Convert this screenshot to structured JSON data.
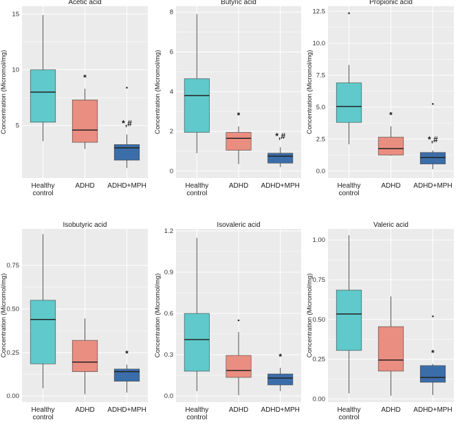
{
  "figure": {
    "ylabel": "Concentration (Micromol/mg)",
    "colors": {
      "healthy": "#5FC9CB",
      "adhd": "#E98E81",
      "mph": "#3B6EA8",
      "panel_bg": "#EBEBEB",
      "grid": "#FFFFFF"
    },
    "categories": [
      {
        "label_lines": [
          "Healthy",
          "control"
        ]
      },
      {
        "label_lines": [
          "ADHD"
        ]
      },
      {
        "label_lines": [
          "ADHD+MPH"
        ]
      }
    ]
  },
  "chart_data": [
    {
      "type": "box",
      "title": "Acetic acid",
      "ylabel": "Concentration (Micromol/mg)",
      "ylim": [
        0.3,
        15.7
      ],
      "yticks": [
        {
          "v": 5,
          "label": "5"
        },
        {
          "v": 10,
          "label": "10"
        },
        {
          "v": 15,
          "label": "15"
        }
      ],
      "categories": [
        "Healthy control",
        "ADHD",
        "ADHD+MPH"
      ],
      "boxes": [
        {
          "min": 3.6,
          "q1": 5.3,
          "median": 8.0,
          "q3": 10.0,
          "max": 14.9,
          "outliers": [],
          "sig": ""
        },
        {
          "min": 2.9,
          "q1": 3.5,
          "median": 4.6,
          "q3": 7.3,
          "max": 8.3,
          "outliers": [],
          "sig": "*"
        },
        {
          "min": 1.2,
          "q1": 1.9,
          "median": 3.0,
          "q3": 3.3,
          "max": 4.2,
          "outliers": [
            8.4
          ],
          "sig": "*,#"
        }
      ]
    },
    {
      "type": "box",
      "title": "Butyric acid",
      "ylabel": "Concentration (Micromol/mg)",
      "ylim": [
        -0.35,
        8.3
      ],
      "yticks": [
        {
          "v": 0,
          "label": "0"
        },
        {
          "v": 2,
          "label": "2"
        },
        {
          "v": 4,
          "label": "4"
        },
        {
          "v": 6,
          "label": "6"
        },
        {
          "v": 8,
          "label": "8"
        }
      ],
      "categories": [
        "Healthy control",
        "ADHD",
        "ADHD+MPH"
      ],
      "boxes": [
        {
          "min": 0.9,
          "q1": 1.95,
          "median": 3.8,
          "q3": 4.65,
          "max": 7.9,
          "outliers": [],
          "sig": ""
        },
        {
          "min": 0.35,
          "q1": 1.05,
          "median": 1.65,
          "q3": 1.95,
          "max": 2.25,
          "outliers": [],
          "sig": "*"
        },
        {
          "min": 0.2,
          "q1": 0.4,
          "median": 0.75,
          "q3": 0.9,
          "max": 1.2,
          "outliers": [],
          "sig": "*,#"
        }
      ]
    },
    {
      "type": "box",
      "title": "Propionic acid",
      "ylabel": "Concentration (Micromol/mg)",
      "ylim": [
        -0.55,
        12.9
      ],
      "yticks": [
        {
          "v": 0,
          "label": "0.0"
        },
        {
          "v": 2.5,
          "label": "2.5"
        },
        {
          "v": 5,
          "label": "5.0"
        },
        {
          "v": 7.5,
          "label": "7.5"
        },
        {
          "v": 10,
          "label": "10.0"
        },
        {
          "v": 12.5,
          "label": "12.5"
        }
      ],
      "categories": [
        "Healthy control",
        "ADHD",
        "ADHD+MPH"
      ],
      "boxes": [
        {
          "min": 2.1,
          "q1": 3.8,
          "median": 5.05,
          "q3": 6.9,
          "max": 8.3,
          "outliers": [
            12.35
          ],
          "sig": ""
        },
        {
          "min": 1.2,
          "q1": 1.25,
          "median": 1.75,
          "q3": 2.65,
          "max": 3.5,
          "outliers": [],
          "sig": "*"
        },
        {
          "min": 0.15,
          "q1": 0.55,
          "median": 1.05,
          "q3": 1.45,
          "max": 1.6,
          "outliers": [
            5.25
          ],
          "sig": "*,#"
        }
      ]
    },
    {
      "type": "box",
      "title": "Isobutyric acid",
      "ylabel": "Concentration (Micromol/mg)",
      "ylim": [
        -0.035,
        0.96
      ],
      "yticks": [
        {
          "v": 0,
          "label": "0.00"
        },
        {
          "v": 0.25,
          "label": "0.25"
        },
        {
          "v": 0.5,
          "label": "0.50"
        },
        {
          "v": 0.75,
          "label": "0.75"
        }
      ],
      "categories": [
        "Healthy control",
        "ADHD",
        "ADHD+MPH"
      ],
      "boxes": [
        {
          "min": 0.045,
          "q1": 0.185,
          "median": 0.44,
          "q3": 0.55,
          "max": 0.93,
          "outliers": [],
          "sig": ""
        },
        {
          "min": 0.01,
          "q1": 0.14,
          "median": 0.195,
          "q3": 0.32,
          "max": 0.445,
          "outliers": [],
          "sig": ""
        },
        {
          "min": 0.02,
          "q1": 0.085,
          "median": 0.14,
          "q3": 0.155,
          "max": 0.18,
          "outliers": [],
          "sig": "*"
        }
      ]
    },
    {
      "type": "box",
      "title": "Isovaleric acid",
      "ylabel": "Concentration (Micromol/mg)",
      "ylim": [
        -0.045,
        1.215
      ],
      "yticks": [
        {
          "v": 0,
          "label": "0.0"
        },
        {
          "v": 0.3,
          "label": "0.3"
        },
        {
          "v": 0.6,
          "label": "0.6"
        },
        {
          "v": 0.9,
          "label": "0.9"
        },
        {
          "v": 1.2,
          "label": "1.2"
        }
      ],
      "categories": [
        "Healthy control",
        "ADHD",
        "ADHD+MPH"
      ],
      "boxes": [
        {
          "min": 0.035,
          "q1": 0.18,
          "median": 0.41,
          "q3": 0.6,
          "max": 1.15,
          "outliers": [],
          "sig": ""
        },
        {
          "min": 0.005,
          "q1": 0.135,
          "median": 0.185,
          "q3": 0.295,
          "max": 0.465,
          "outliers": [
            0.55
          ],
          "sig": ""
        },
        {
          "min": 0.035,
          "q1": 0.08,
          "median": 0.13,
          "q3": 0.16,
          "max": 0.205,
          "outliers": [],
          "sig": "*"
        }
      ]
    },
    {
      "type": "box",
      "title": "Valeric acid",
      "ylabel": "Concentration (Micromol/mg)",
      "ylim": [
        -0.02,
        1.07
      ],
      "yticks": [
        {
          "v": 0,
          "label": "0.00"
        },
        {
          "v": 0.25,
          "label": "0.25"
        },
        {
          "v": 0.5,
          "label": "0.50"
        },
        {
          "v": 0.75,
          "label": "0.75"
        },
        {
          "v": 1.0,
          "label": "1.00"
        }
      ],
      "categories": [
        "Healthy control",
        "ADHD",
        "ADHD+MPH"
      ],
      "boxes": [
        {
          "min": 0.035,
          "q1": 0.305,
          "median": 0.535,
          "q3": 0.685,
          "max": 1.03,
          "outliers": [],
          "sig": ""
        },
        {
          "min": 0.02,
          "q1": 0.175,
          "median": 0.245,
          "q3": 0.455,
          "max": 0.645,
          "outliers": [],
          "sig": ""
        },
        {
          "min": 0.025,
          "q1": 0.105,
          "median": 0.135,
          "q3": 0.21,
          "max": 0.22,
          "outliers": [
            0.52
          ],
          "sig": "*"
        }
      ]
    }
  ]
}
